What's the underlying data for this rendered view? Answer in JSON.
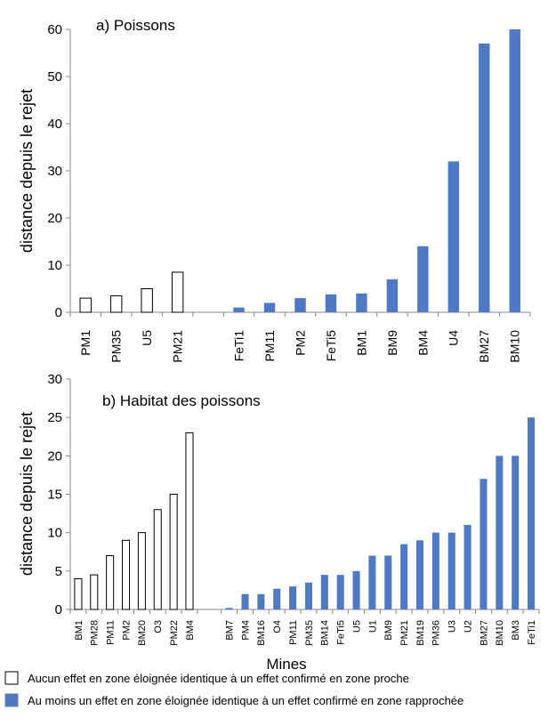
{
  "chart_data": [
    {
      "type": "bar",
      "title": "a) Poissons",
      "ylabel": "distance depuis le rejet",
      "xlabel": "",
      "ylim": [
        0,
        60
      ],
      "yticks": [
        0,
        10,
        20,
        30,
        40,
        50,
        60
      ],
      "groups": [
        {
          "name": "Aucun effet en zone éloignée identique à un effet confirmé en zone proche",
          "style": "outline",
          "categories": [
            "PM1",
            "PM35",
            "U5",
            "PM21"
          ],
          "values": [
            3,
            3.5,
            5,
            8.5
          ]
        },
        {
          "name": "Au moins un effet en zone éloignée identique à un effet confirmé en zone rapprochée",
          "style": "filled",
          "categories": [
            "FeTi1",
            "PM11",
            "PM2",
            "FeTi5",
            "BM1",
            "BM9",
            "BM4",
            "U4",
            "BM27",
            "BM10"
          ],
          "values": [
            1,
            2,
            3,
            3.8,
            4,
            7,
            14,
            32,
            57,
            60
          ]
        }
      ]
    },
    {
      "type": "bar",
      "title": "b) Habitat des poissons",
      "ylabel": "distance depuis le rejet",
      "xlabel": "Mines",
      "ylim": [
        0,
        30
      ],
      "yticks": [
        0,
        5,
        10,
        15,
        20,
        25,
        30
      ],
      "groups": [
        {
          "name": "Aucun effet en zone éloignée identique à un effet confirmé en zone proche",
          "style": "outline",
          "categories": [
            "BM1",
            "PM28",
            "PM11",
            "PM2",
            "BM20",
            "O3",
            "PM22",
            "BM4"
          ],
          "values": [
            4,
            4.5,
            7,
            9,
            10,
            13,
            15,
            23
          ]
        },
        {
          "name": "Au moins un effet en zone éloignée identique à un effet confirmé en zone rapprochée",
          "style": "filled",
          "categories": [
            "BM7",
            "PM4",
            "BM16",
            "O4",
            "PM11",
            "PM35",
            "BM14",
            "FeTi5",
            "U5",
            "U1",
            "BM9",
            "PM21",
            "BM19",
            "PM36",
            "U3",
            "U2",
            "BM27",
            "BM10",
            "BM3",
            "FeTi1"
          ],
          "values": [
            0.2,
            2,
            2,
            2.7,
            3,
            3.5,
            4.5,
            4.5,
            5,
            7,
            7,
            8.5,
            9,
            10,
            10,
            11,
            17,
            20,
            20,
            25
          ]
        }
      ]
    }
  ],
  "legend": {
    "items": [
      {
        "label": "Aucun effet en zone éloignée identique  à un effet confirmé en zone proche",
        "color": "#ffffff"
      },
      {
        "label": "Au moins un effet en zone éloignée identique  à un effet confirmé en zone rapprochée",
        "color": "#4f79c2"
      }
    ]
  },
  "colors": {
    "filled": "#4f79c2",
    "outline_stroke": "#000000",
    "outline_fill": "#ffffff",
    "axis": "#888888"
  }
}
